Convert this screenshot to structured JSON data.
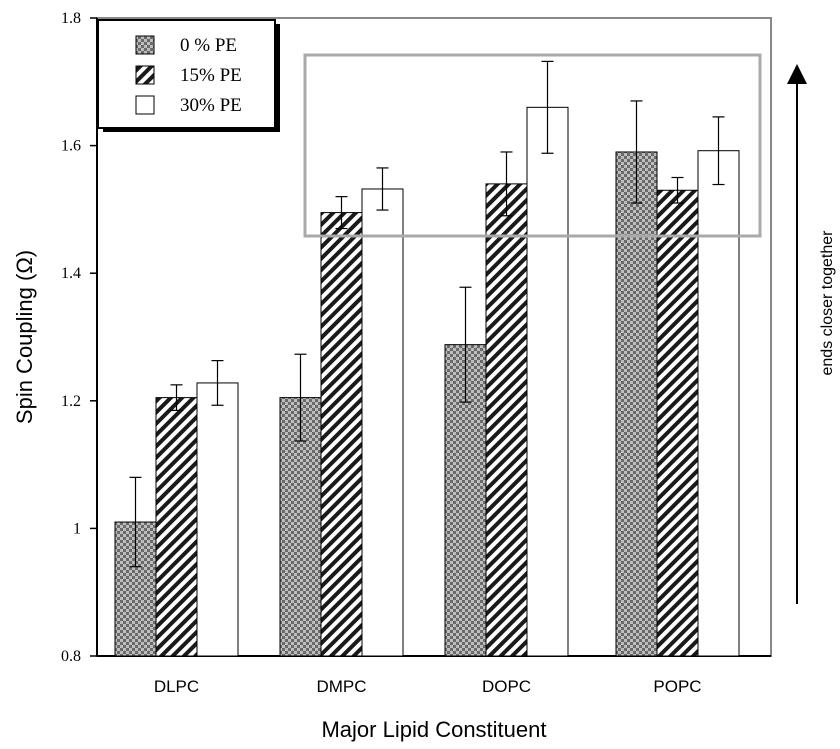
{
  "chart_data": {
    "type": "bar",
    "xlabel": "Major Lipid Constituent",
    "ylabel": "Spin Coupling (Ω)",
    "ylim": [
      0.8,
      1.8
    ],
    "yticks": [
      "0.8",
      "1",
      "1.2",
      "1.4",
      "1.6",
      "1.8"
    ],
    "categories": [
      "DLPC",
      "DMPC",
      "DOPC",
      "POPC"
    ],
    "series": [
      {
        "name": "0 % PE",
        "pattern": "checker",
        "values": [
          1.01,
          1.205,
          1.288,
          1.59
        ],
        "errors": [
          0.07,
          0.068,
          0.09,
          0.08
        ]
      },
      {
        "name": "15% PE",
        "pattern": "diagonal-hatch",
        "values": [
          1.205,
          1.495,
          1.54,
          1.53
        ],
        "errors": [
          0.02,
          0.025,
          0.05,
          0.02
        ]
      },
      {
        "name": "30% PE",
        "pattern": "white",
        "values": [
          1.228,
          1.532,
          1.66,
          1.592
        ],
        "errors": [
          0.035,
          0.033,
          0.072,
          0.053
        ]
      }
    ],
    "legend_position": "top-left",
    "grid": false,
    "annotation": {
      "text": "ends closer together",
      "arrow_direction": "up"
    },
    "colors": {
      "checker_dark": "#6a6a6a",
      "checker_light": "#bdbdbd",
      "hatch": "#1a1a1a",
      "highlight_box": "#a9a9a9"
    }
  }
}
